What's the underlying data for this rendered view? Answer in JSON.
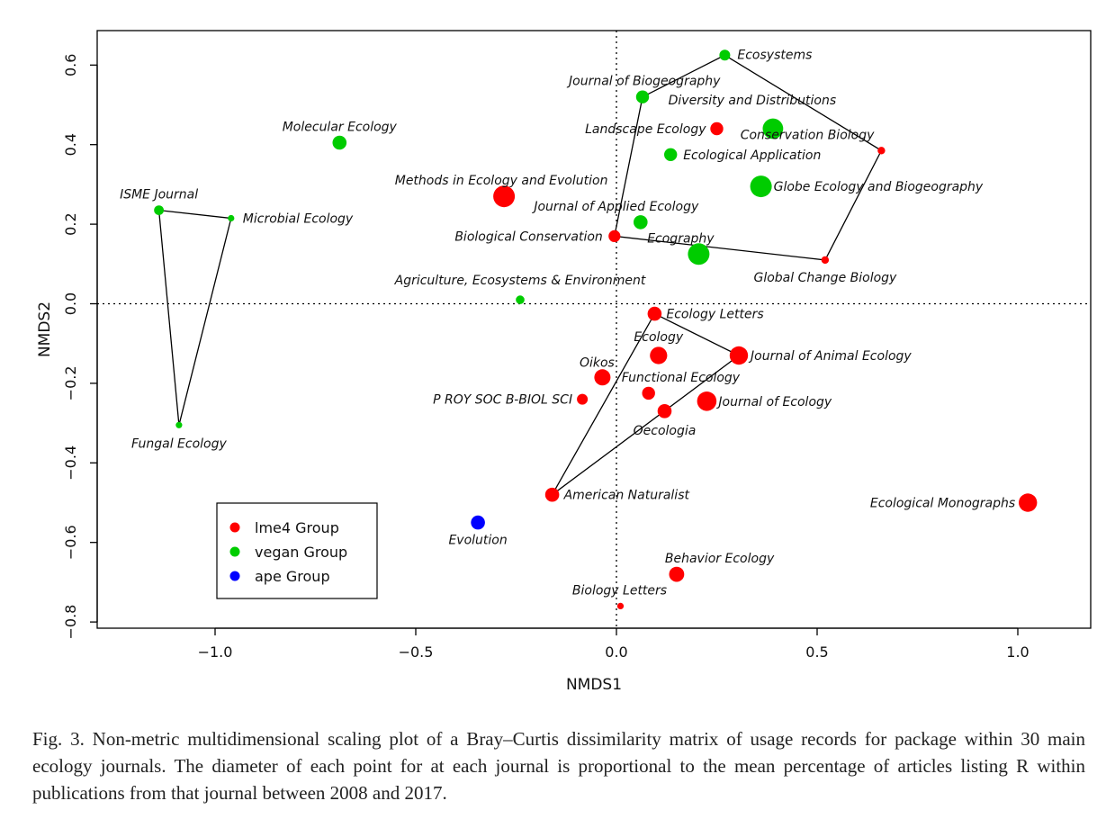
{
  "chart_data": {
    "type": "scatter",
    "xlabel": "NMDS1",
    "ylabel": "NMDS2",
    "xlim": [
      -1.3,
      1.2
    ],
    "ylim": [
      -0.8,
      0.68
    ],
    "xticks": [
      -1.0,
      -0.5,
      0.0,
      0.5,
      1.0
    ],
    "xtick_labels": [
      "−1.0",
      "−0.5",
      "0.0",
      "0.5",
      "1.0"
    ],
    "yticks": [
      -0.8,
      -0.6,
      -0.4,
      -0.2,
      0.0,
      0.2,
      0.4,
      0.6
    ],
    "ytick_labels": [
      "−0.8",
      "−0.6",
      "−0.4",
      "−0.2",
      "0.0",
      "0.2",
      "0.4",
      "0.6"
    ],
    "grid": false,
    "reference_lines": {
      "x": 0,
      "y": 0,
      "style": "dotted"
    },
    "legend": {
      "placement": "bottom-left",
      "entries": [
        {
          "label": "lme4 Group",
          "color": "#ff0000"
        },
        {
          "label": "vegan Group",
          "color": "#00cc00"
        },
        {
          "label": "ape Group",
          "color": "#0000ff"
        }
      ]
    },
    "groups": [
      {
        "name": "lme4 Group",
        "color": "#ff0000"
      },
      {
        "name": "vegan Group",
        "color": "#00cc00"
      },
      {
        "name": "ape Group",
        "color": "#0000ff"
      }
    ],
    "points": [
      {
        "label": "Ecosystems",
        "group": "vegan Group",
        "x": 0.27,
        "y": 0.625,
        "size": 1.0
      },
      {
        "label": "Journal of Biogeography",
        "group": "vegan Group",
        "x": 0.065,
        "y": 0.52,
        "size": 1.2
      },
      {
        "label": "Diversity and Distributions",
        "group": "vegan Group",
        "x": 0.39,
        "y": 0.44,
        "size": 1.9
      },
      {
        "label": "Landscape Ecology",
        "group": "lme4 Group",
        "x": 0.25,
        "y": 0.44,
        "size": 1.2
      },
      {
        "label": "Conservation Biology",
        "group": "lme4 Group",
        "x": 0.66,
        "y": 0.385,
        "size": 0.7
      },
      {
        "label": "Ecological Application",
        "group": "vegan Group",
        "x": 0.135,
        "y": 0.375,
        "size": 1.2
      },
      {
        "label": "Molecular Ecology",
        "group": "vegan Group",
        "x": -0.69,
        "y": 0.405,
        "size": 1.3
      },
      {
        "label": "Globe Ecology and Biogeography",
        "group": "vegan Group",
        "x": 0.36,
        "y": 0.295,
        "size": 2.0
      },
      {
        "label": "Methods in Ecology and Evolution",
        "group": "lme4 Group",
        "x": -0.28,
        "y": 0.27,
        "size": 2.0
      },
      {
        "label": "ISME Journal",
        "group": "vegan Group",
        "x": -1.14,
        "y": 0.235,
        "size": 0.9
      },
      {
        "label": "Microbial Ecology",
        "group": "vegan Group",
        "x": -0.96,
        "y": 0.215,
        "size": 0.6
      },
      {
        "label": "Journal of Applied Ecology",
        "group": "vegan Group",
        "x": 0.06,
        "y": 0.205,
        "size": 1.3
      },
      {
        "label": "Biological Conservation",
        "group": "lme4 Group",
        "x": -0.005,
        "y": 0.17,
        "size": 1.1
      },
      {
        "label": "Ecography",
        "group": "vegan Group",
        "x": 0.205,
        "y": 0.125,
        "size": 2.0
      },
      {
        "label": "Global Change Biology",
        "group": "lme4 Group",
        "x": 0.52,
        "y": 0.11,
        "size": 0.7
      },
      {
        "label": "Agriculture, Ecosystems & Environment",
        "group": "vegan Group",
        "x": -0.24,
        "y": 0.01,
        "size": 0.8
      },
      {
        "label": "Ecology Letters",
        "group": "lme4 Group",
        "x": 0.095,
        "y": -0.025,
        "size": 1.3
      },
      {
        "label": "Ecology",
        "group": "lme4 Group",
        "x": 0.105,
        "y": -0.13,
        "size": 1.6
      },
      {
        "label": "Journal of Animal Ecology",
        "group": "lme4 Group",
        "x": 0.305,
        "y": -0.13,
        "size": 1.7
      },
      {
        "label": "Oikos",
        "group": "lme4 Group",
        "x": -0.035,
        "y": -0.185,
        "size": 1.5
      },
      {
        "label": "P ROY SOC B-BIOL SCI",
        "group": "lme4 Group",
        "x": -0.085,
        "y": -0.24,
        "size": 1.0
      },
      {
        "label": "Functional Ecology",
        "group": "lme4 Group",
        "x": 0.08,
        "y": -0.225,
        "size": 1.2
      },
      {
        "label": "Journal of Ecology",
        "group": "lme4 Group",
        "x": 0.225,
        "y": -0.245,
        "size": 1.8
      },
      {
        "label": "Oecologia",
        "group": "lme4 Group",
        "x": 0.12,
        "y": -0.27,
        "size": 1.3
      },
      {
        "label": "Fungal Ecology",
        "group": "vegan Group",
        "x": -1.09,
        "y": -0.305,
        "size": 0.6
      },
      {
        "label": "American Naturalist",
        "group": "lme4 Group",
        "x": -0.16,
        "y": -0.48,
        "size": 1.3
      },
      {
        "label": "Ecological Monographs",
        "group": "lme4 Group",
        "x": 1.025,
        "y": -0.5,
        "size": 1.7
      },
      {
        "label": "Evolution",
        "group": "ape Group",
        "x": -0.345,
        "y": -0.55,
        "size": 1.3
      },
      {
        "label": "Behavior Ecology",
        "group": "lme4 Group",
        "x": 0.15,
        "y": -0.68,
        "size": 1.4
      },
      {
        "label": "Biology Letters",
        "group": "lme4 Group",
        "x": 0.01,
        "y": -0.76,
        "size": 0.6
      }
    ],
    "hulls": [
      [
        "Ecosystems",
        "Conservation Biology",
        "Global Change Biology",
        "Biological Conservation",
        "Journal of Biogeography"
      ],
      [
        "ISME Journal",
        "Microbial Ecology",
        "Fungal Ecology"
      ],
      [
        "Ecology Letters",
        "Journal of Animal Ecology",
        "American Naturalist"
      ]
    ]
  },
  "caption": "Fig. 3. Non-metric multidimensional scaling plot of a Bray–Curtis dissimilarity matrix of usage records for package within 30 main ecology journals. The diameter of each point for at each journal is proportional to the mean percentage of articles listing R within publications from that journal between 2008 and 2017."
}
